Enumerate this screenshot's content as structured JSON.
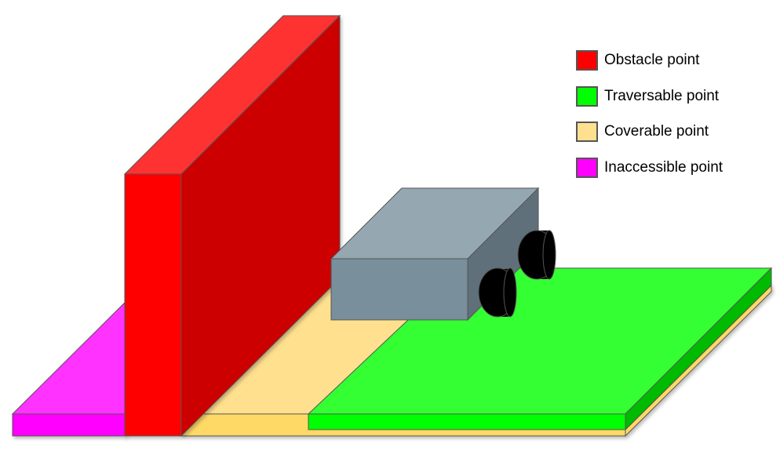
{
  "legend": {
    "items": [
      {
        "label": "Obstacle point",
        "color": "#ff0000"
      },
      {
        "label": "Traversable point",
        "color": "#00ff00"
      },
      {
        "label": "Coverable point",
        "color": "#ffe08f"
      },
      {
        "label": "Inaccessible point",
        "color": "#ff00ff"
      }
    ]
  },
  "colors": {
    "obstacle_front": "#ff0000",
    "obstacle_side": "#cc0000",
    "obstacle_top": "#ff3333",
    "traversable_top": "#33ff33",
    "traversable_front": "#00ff00",
    "traversable_side": "#00bb00",
    "coverable_top": "#ffe08f",
    "coverable_front": "#ffd966",
    "inaccessible_top": "#ff33ff",
    "inaccessible_front": "#ff00ff",
    "robot_top": "#95a7b1",
    "robot_front": "#798f9b",
    "robot_side": "#5f707a",
    "wheel": "#000000",
    "outline": "#555555"
  }
}
